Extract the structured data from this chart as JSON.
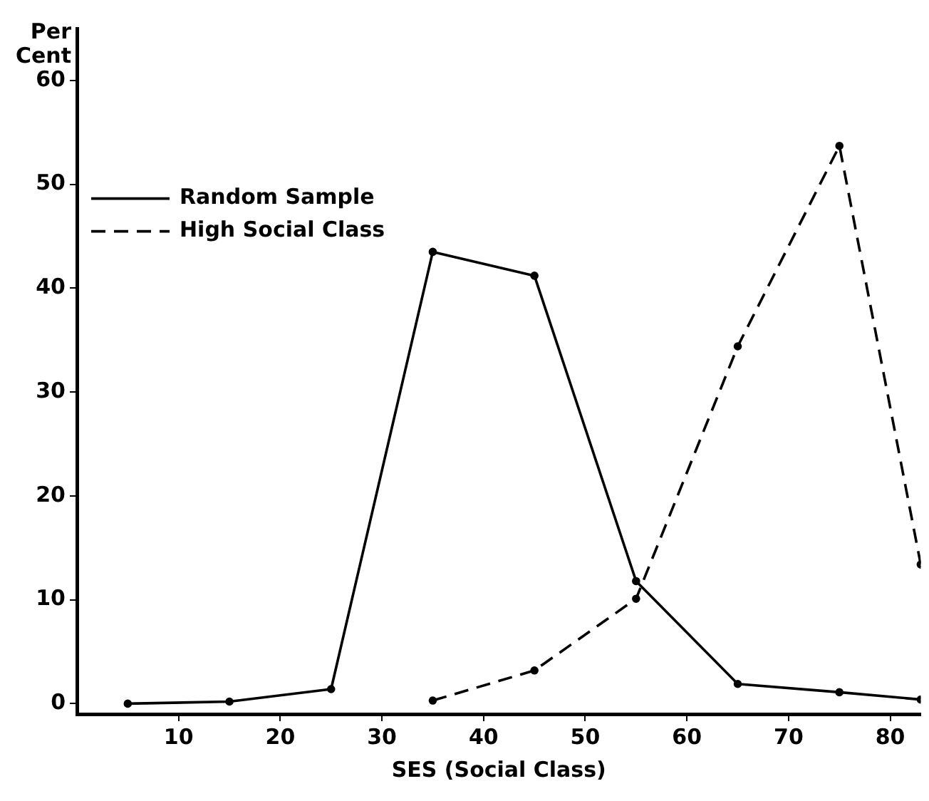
{
  "chart_data": {
    "type": "line",
    "xlabel": "SES (Social Class)",
    "ylabel": "Per Cent",
    "xlim": [
      0,
      83
    ],
    "xticks": [
      10,
      20,
      30,
      40,
      50,
      60,
      70,
      80
    ],
    "ylim": [
      -1,
      65
    ],
    "yticks": [
      0,
      10,
      20,
      30,
      40,
      50,
      60
    ],
    "grid": false,
    "legend": "top left",
    "marker": "circle",
    "series": [
      {
        "name": "Random Sample",
        "color": "#000000",
        "line_style": "solid",
        "x": [
          5,
          15,
          25,
          35,
          45,
          55,
          65,
          75,
          83
        ],
        "values": [
          0,
          0.2,
          1.4,
          43.5,
          41.2,
          11.8,
          1.9,
          1.1,
          0.4
        ]
      },
      {
        "name": "High Social Class",
        "color": "#000000",
        "line_style": "dashed",
        "x": [
          35,
          45,
          55,
          65,
          75,
          83
        ],
        "values": [
          0.3,
          3.2,
          10.1,
          34.4,
          53.7,
          13.4
        ]
      }
    ]
  }
}
